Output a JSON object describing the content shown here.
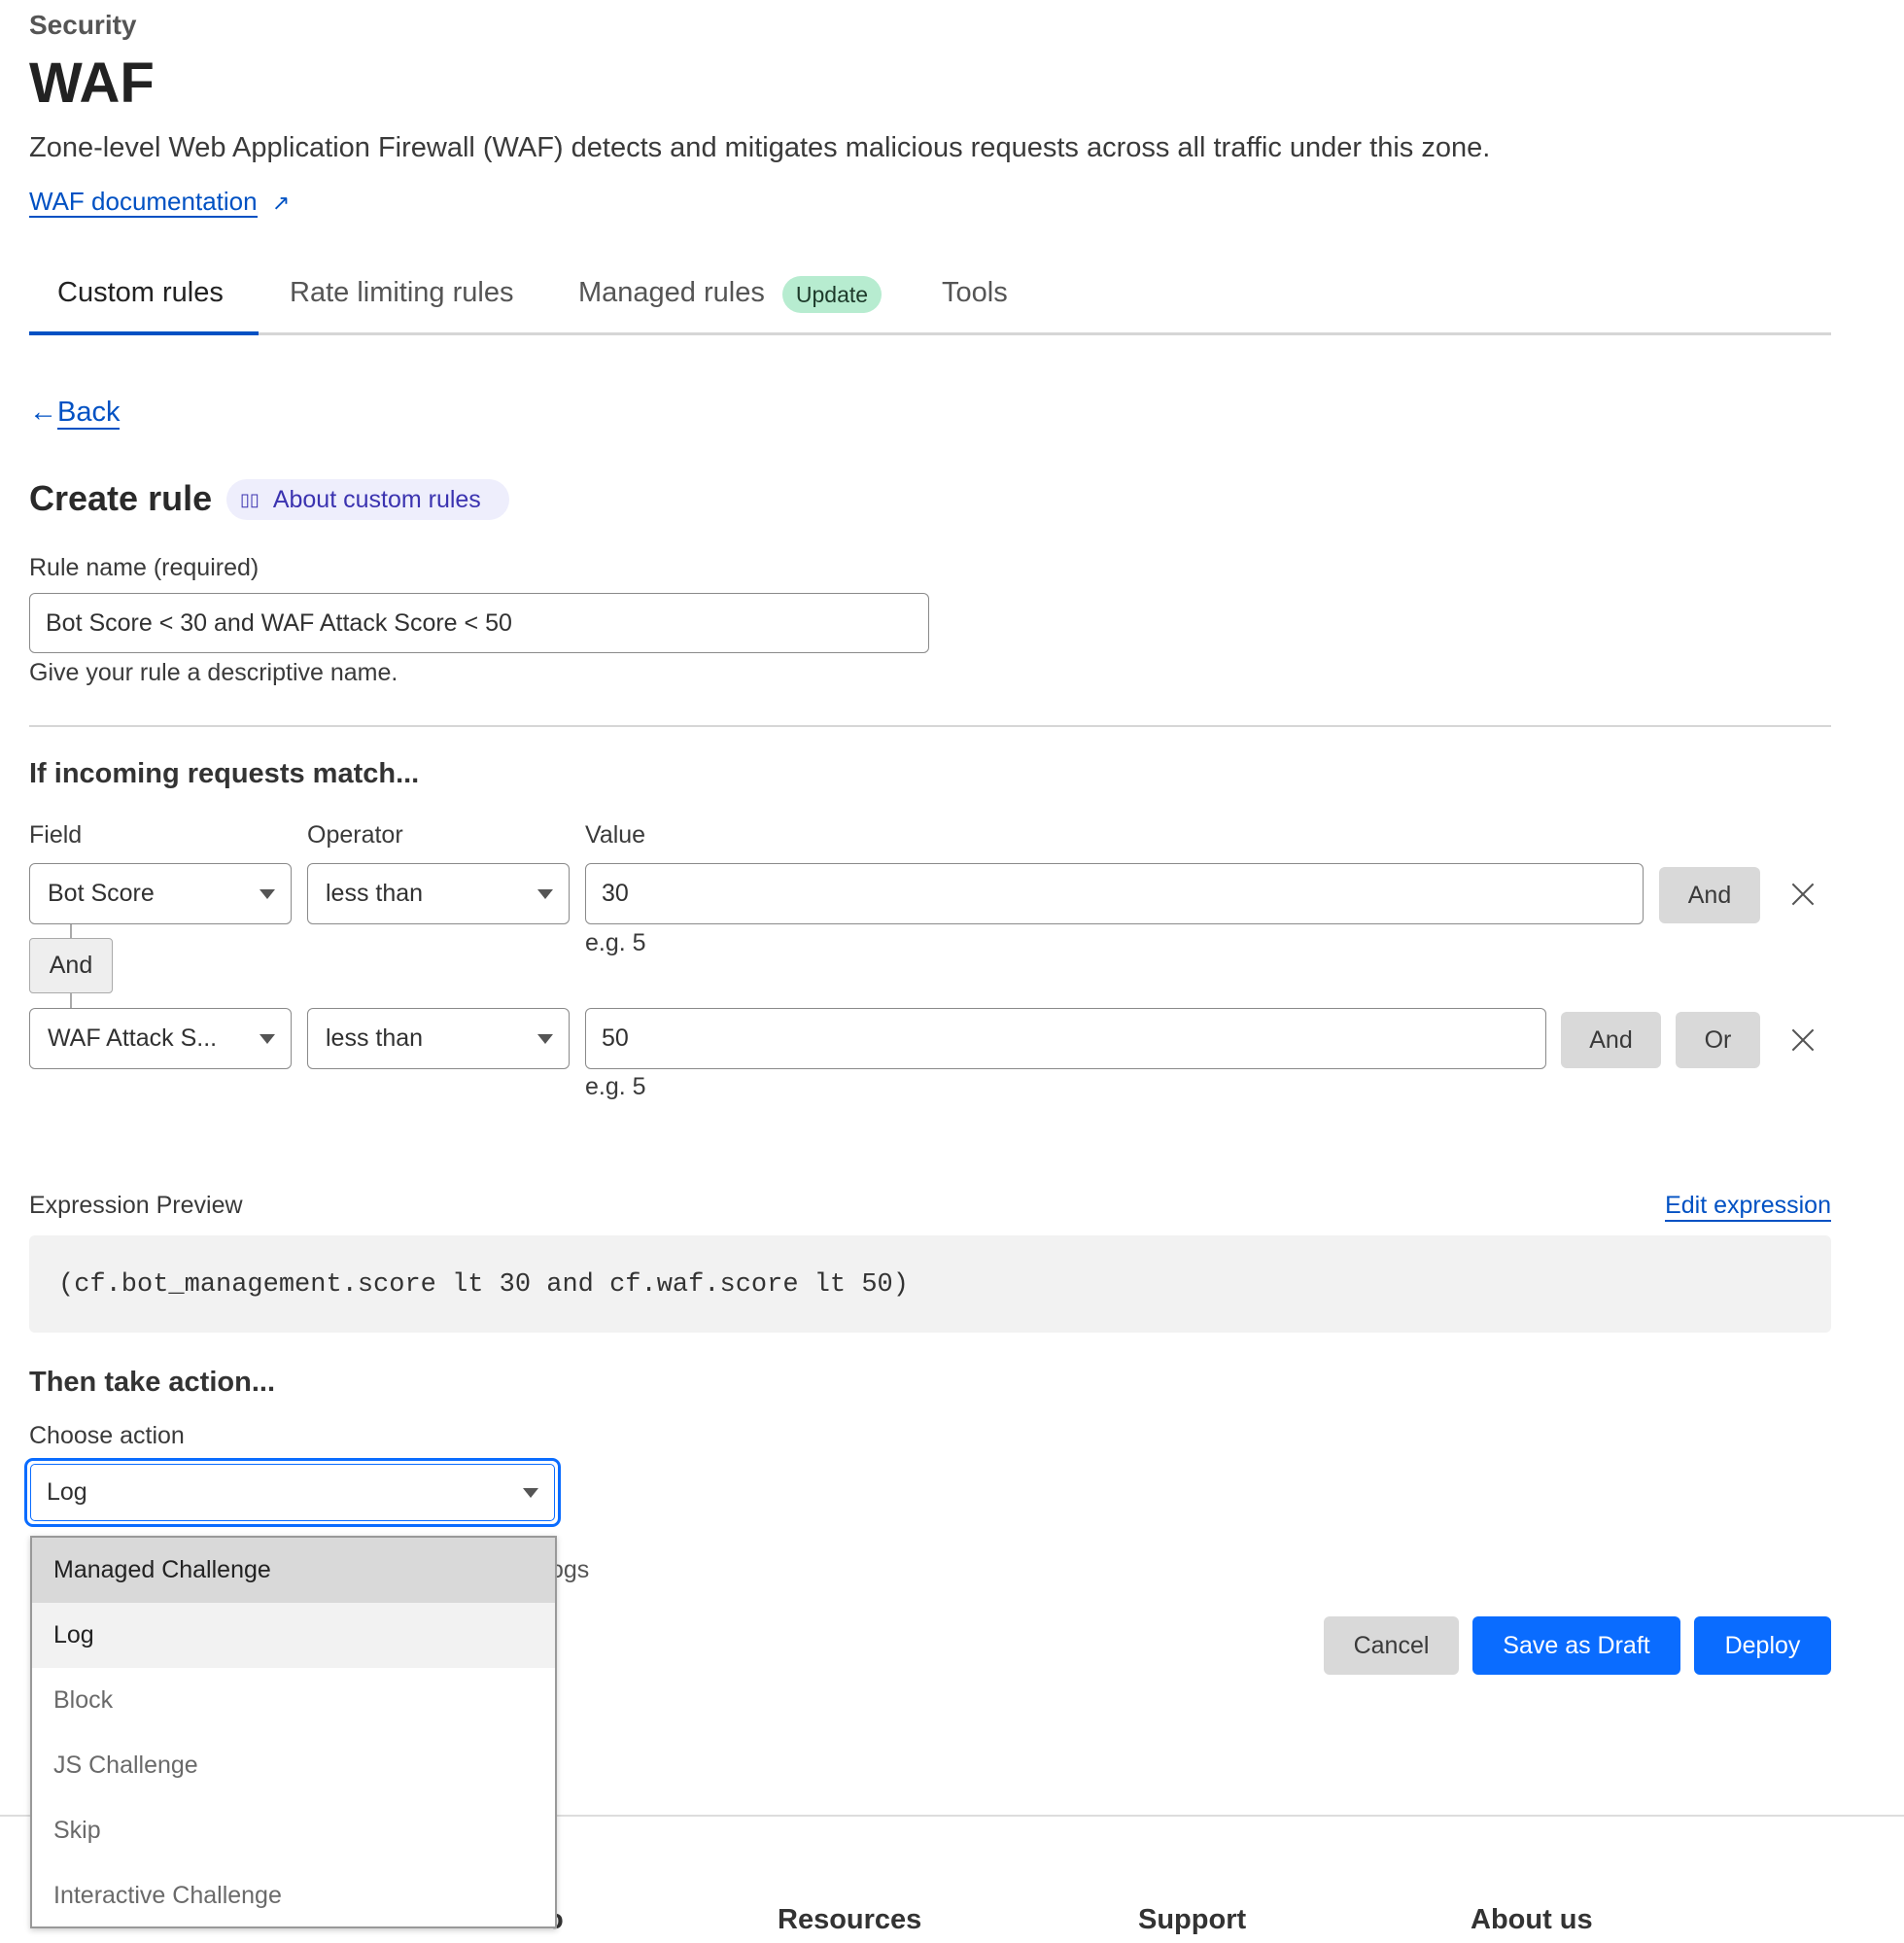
{
  "header": {
    "breadcrumb": "Security",
    "title": "WAF",
    "description": "Zone-level Web Application Firewall (WAF) detects and mitigates malicious requests across all traffic under this zone.",
    "doc_link": "WAF documentation"
  },
  "tabs": [
    {
      "label": "Custom rules",
      "active": true
    },
    {
      "label": "Rate limiting rules"
    },
    {
      "label": "Managed rules",
      "badge": "Update"
    },
    {
      "label": "Tools"
    }
  ],
  "back": "Back",
  "create": {
    "title": "Create rule",
    "about": "About custom rules",
    "rule_name_label": "Rule name (required)",
    "rule_name_value": "Bot Score < 30 and WAF Attack Score < 50",
    "rule_name_help": "Give your rule a descriptive name."
  },
  "match": {
    "title": "If incoming requests match...",
    "field_label": "Field",
    "operator_label": "Operator",
    "value_label": "Value",
    "connector": "And",
    "rows": [
      {
        "field": "Bot Score",
        "operator": "less than",
        "value": "30",
        "hint": "e.g. 5",
        "and": "And"
      },
      {
        "field": "WAF Attack S...",
        "operator": "less than",
        "value": "50",
        "hint": "e.g. 5",
        "and": "And",
        "or": "Or"
      }
    ]
  },
  "expression": {
    "label": "Expression Preview",
    "edit": "Edit expression",
    "code": "(cf.bot_management.score lt 30 and cf.waf.score lt 50)"
  },
  "action": {
    "title": "Then take action...",
    "label": "Choose action",
    "selected": "Log",
    "hidden_text": "ogs",
    "options": [
      "Managed Challenge",
      "Log",
      "Block",
      "JS Challenge",
      "Skip",
      "Interactive Challenge"
    ]
  },
  "buttons": {
    "cancel": "Cancel",
    "draft": "Save as Draft",
    "deploy": "Deploy"
  },
  "footer": {
    "partial": "o",
    "headings": [
      "Resources",
      "Support",
      "About us"
    ]
  },
  "colors": {
    "accent": "#0a6cff",
    "link": "#0051c3",
    "badge_bg": "#b7ecd0"
  }
}
